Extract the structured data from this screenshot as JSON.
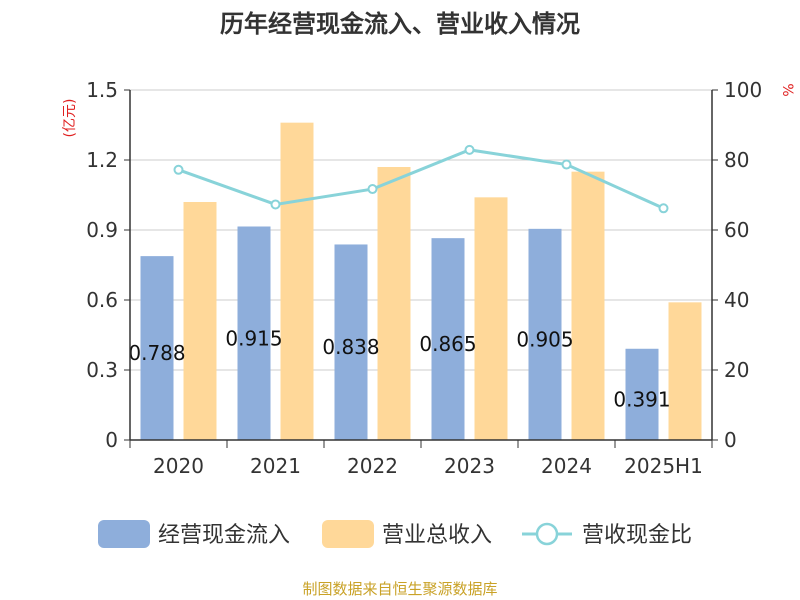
{
  "chart_data": {
    "type": "bar",
    "title": "历年经营现金流入、营业收入情况",
    "categories": [
      "2020",
      "2021",
      "2022",
      "2023",
      "2024",
      "2025H1"
    ],
    "series": [
      {
        "name": "经营现金流入",
        "kind": "bar",
        "axis": "left",
        "color": "#8eaedb",
        "values": [
          0.788,
          0.915,
          0.838,
          0.865,
          0.905,
          0.391
        ]
      },
      {
        "name": "营业总收入",
        "kind": "bar",
        "axis": "left",
        "color": "#ffd899",
        "values": [
          1.02,
          1.36,
          1.17,
          1.04,
          1.15,
          0.59
        ]
      },
      {
        "name": "营收现金比",
        "kind": "line",
        "axis": "right",
        "color": "#88d3d9",
        "values": [
          77.2,
          67.3,
          71.7,
          82.9,
          78.7,
          66.2
        ]
      }
    ],
    "data_labels": [
      "0.788",
      "0.915",
      "0.838",
      "0.865",
      "0.905",
      "0.391"
    ],
    "y_left": {
      "label": "(亿元)",
      "min": 0,
      "max": 1.5,
      "ticks": [
        "0",
        "0.3",
        "0.6",
        "0.9",
        "1.2",
        "1.5"
      ]
    },
    "y_right": {
      "label": "%",
      "min": 0,
      "max": 100,
      "ticks": [
        "0",
        "20",
        "40",
        "60",
        "80",
        "100"
      ]
    },
    "grid": true,
    "legend_position": "bottom"
  },
  "footer": {
    "source": "制图数据来自恒生聚源数据库"
  }
}
